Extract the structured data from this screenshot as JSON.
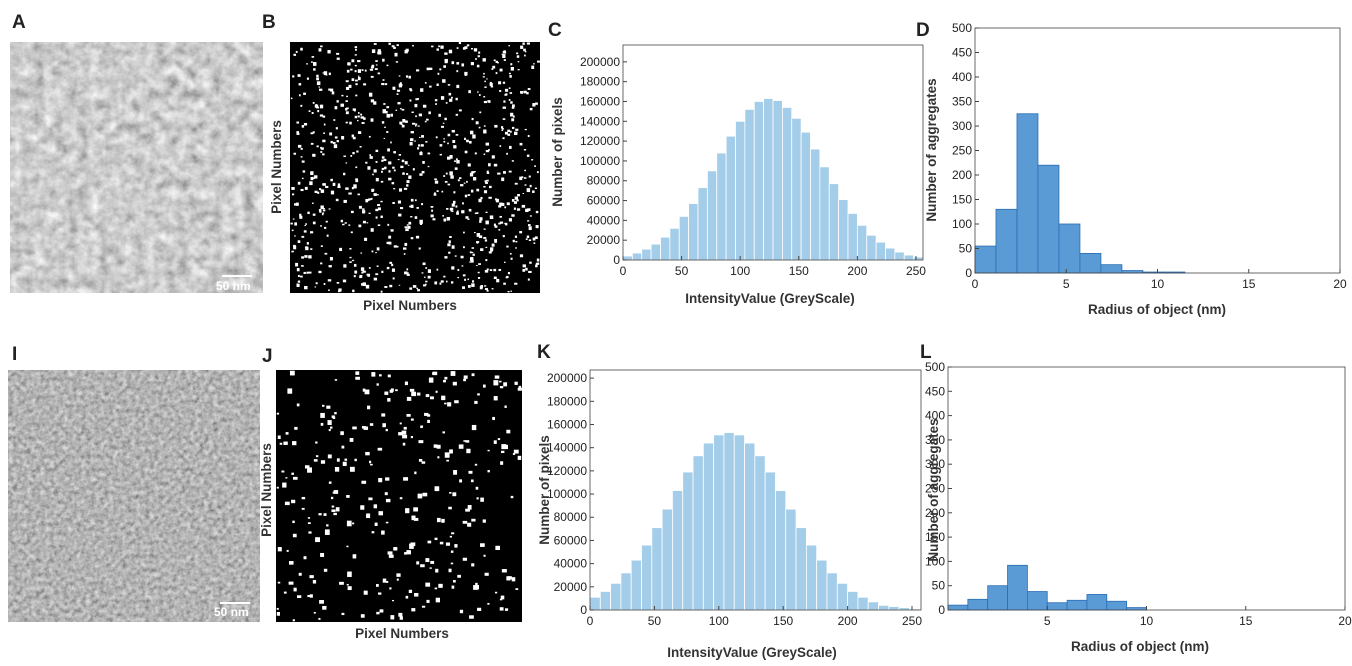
{
  "images": [
    {
      "label": "A",
      "scale_bar": "50 nm"
    },
    {
      "label": "B",
      "xlabel": "Pixel Numbers",
      "ylabel": "Pixel Numbers"
    },
    {
      "label": "I",
      "scale_bar": "50 nm"
    },
    {
      "label": "J",
      "xlabel": "Pixel Numbers",
      "ylabel": "Pixel Numbers"
    }
  ],
  "chart_data": [
    {
      "type": "histogram",
      "label": "C",
      "xlabel": "IntensityValue (GreyScale)",
      "ylabel": "Number of pixels",
      "bins": [
        0,
        8,
        16,
        24,
        32,
        40,
        48,
        56,
        64,
        72,
        80,
        88,
        96,
        104,
        112,
        120,
        128,
        136,
        144,
        152,
        160,
        168,
        176,
        184,
        192,
        200,
        208,
        216,
        224,
        232,
        240,
        248,
        256
      ],
      "values": [
        4000,
        7000,
        11000,
        16000,
        23000,
        32000,
        44000,
        57000,
        73000,
        90000,
        108000,
        125000,
        140000,
        152000,
        160000,
        163000,
        161000,
        154000,
        143000,
        129000,
        112000,
        94000,
        77000,
        61000,
        47000,
        35000,
        25000,
        18000,
        12000,
        8000,
        5000,
        3000
      ],
      "color": "#a3cde9",
      "edgecolor": "#ffffff",
      "xlim": [
        0,
        256
      ],
      "ylim": [
        0,
        217000
      ],
      "xticks": [
        0,
        50,
        100,
        150,
        200,
        250
      ],
      "yticks": [
        0,
        20000,
        40000,
        60000,
        80000,
        100000,
        120000,
        140000,
        160000,
        180000,
        200000
      ]
    },
    {
      "type": "histogram",
      "label": "D",
      "xlabel": "Radius of object (nm)",
      "ylabel": "Number of aggregates",
      "bins": [
        0,
        1.15,
        2.3,
        3.45,
        4.6,
        5.75,
        6.9,
        8.05,
        9.2,
        10.35,
        11.5
      ],
      "values": [
        55,
        130,
        325,
        220,
        100,
        40,
        17,
        5,
        2,
        2
      ],
      "color": "#5b9bd5",
      "edgecolor": "#2a6db5",
      "xlim": [
        0,
        20
      ],
      "ylim": [
        0,
        500
      ],
      "xticks": [
        0,
        5,
        10,
        15,
        20
      ],
      "yticks": [
        0,
        50,
        100,
        150,
        200,
        250,
        300,
        350,
        400,
        450,
        500
      ]
    },
    {
      "type": "histogram",
      "label": "K",
      "xlabel": "IntensityValue (GreyScale)",
      "ylabel": "Number of pixels",
      "bins": [
        0,
        8,
        16,
        24,
        32,
        40,
        48,
        56,
        64,
        72,
        80,
        88,
        96,
        104,
        112,
        120,
        128,
        136,
        144,
        152,
        160,
        168,
        176,
        184,
        192,
        200,
        208,
        216,
        224,
        232,
        240,
        248,
        256
      ],
      "values": [
        11000,
        16000,
        23000,
        32000,
        43000,
        56000,
        71000,
        87000,
        103000,
        119000,
        133000,
        144000,
        151000,
        153000,
        151000,
        144000,
        133000,
        119000,
        103000,
        87000,
        71000,
        56000,
        43000,
        32000,
        23000,
        16000,
        11000,
        7000,
        4000,
        3000,
        2000,
        1000
      ],
      "color": "#a3cde9",
      "edgecolor": "#ffffff",
      "xlim": [
        0,
        257
      ],
      "ylim": [
        0,
        207000
      ],
      "xticks": [
        0,
        50,
        100,
        150,
        200,
        250
      ],
      "yticks": [
        0,
        20000,
        40000,
        60000,
        80000,
        100000,
        120000,
        140000,
        160000,
        180000,
        200000
      ]
    },
    {
      "type": "histogram",
      "label": "L",
      "xlabel": "Radius of object (nm)",
      "ylabel": "Number of aggregates",
      "bins": [
        0,
        1,
        2,
        3,
        4,
        5,
        6,
        7,
        8,
        9,
        10
      ],
      "values": [
        10,
        22,
        50,
        92,
        38,
        15,
        20,
        32,
        18,
        5
      ],
      "color": "#5b9bd5",
      "edgecolor": "#2a6db5",
      "xlim": [
        0,
        20
      ],
      "ylim": [
        0,
        500
      ],
      "xticks": [
        5,
        10,
        15,
        20
      ],
      "yticks": [
        0,
        50,
        100,
        150,
        200,
        250,
        300,
        350,
        400,
        450,
        500
      ]
    }
  ]
}
